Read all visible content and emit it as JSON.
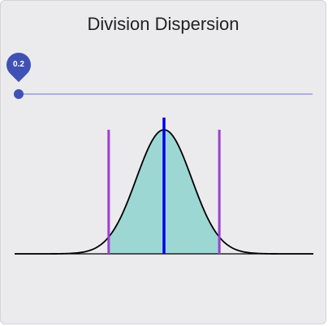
{
  "title": "Division Dispersion",
  "slider": {
    "value": 0.2,
    "value_label": "0.2",
    "min": 0,
    "max": 1
  },
  "colors": {
    "accent": "#3f51b5",
    "fill": "#9dd7d4",
    "curve": "#000000",
    "center_line": "#0000ee",
    "bound_lines": "#9b3fd1",
    "background": "#ebeaed"
  },
  "chart_data": {
    "type": "area",
    "distribution": "normal",
    "mean": 0,
    "sd": 1,
    "x_range": [
      -5.4,
      5.4
    ],
    "shaded_interval": [
      -2,
      2
    ],
    "center_marker": 0,
    "bound_markers": [
      -2,
      2
    ]
  }
}
